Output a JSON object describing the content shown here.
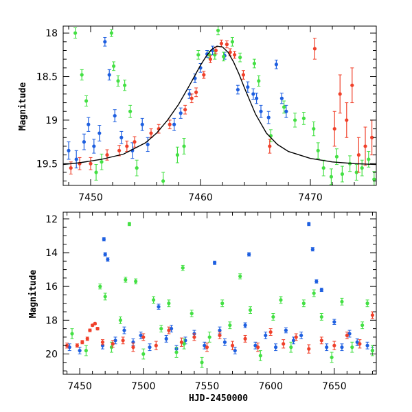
{
  "chart_data": [
    {
      "type": "scatter",
      "title": "",
      "xlabel": "",
      "ylabel": "Magnitude",
      "xlim": [
        7447.5,
        7476
      ],
      "ylim": [
        19.75,
        17.92
      ],
      "y_inverted": true,
      "grid": false,
      "x_ticks": [
        7450,
        7460,
        7470
      ],
      "y_ticks": [
        18,
        18.5,
        19,
        19.5
      ],
      "colors": {
        "blue": "#1e5fe0",
        "green": "#44e044",
        "red": "#f0402a",
        "model": "#000000"
      },
      "model_curve": {
        "style": "line",
        "x": [
          7447.5,
          7449,
          7451,
          7453,
          7455,
          7456,
          7457,
          7458,
          7459,
          7460,
          7460.5,
          7461,
          7461.5,
          7462,
          7462.5,
          7463,
          7463.5,
          7464,
          7465,
          7466,
          7467,
          7468,
          7470,
          7472,
          7474,
          7476
        ],
        "y": [
          19.51,
          19.49,
          19.45,
          19.39,
          19.26,
          19.15,
          19.0,
          18.82,
          18.6,
          18.37,
          18.27,
          18.19,
          18.15,
          18.16,
          18.22,
          18.33,
          18.47,
          18.63,
          18.93,
          19.15,
          19.28,
          19.36,
          19.44,
          19.48,
          19.5,
          19.51
        ]
      },
      "series": [
        {
          "color": "blue",
          "x": [
            7448.0,
            7448.7,
            7449.4,
            7449.8,
            7450.3,
            7450.8,
            7451.3,
            7451.7,
            7452.2,
            7452.8,
            7453.8,
            7454.7,
            7455.2,
            7457.6,
            7458.2,
            7459.0,
            7459.5,
            7460.0,
            7460.6,
            7461.1,
            7462.2,
            7463.4,
            7464.3,
            7464.8,
            7465.1,
            7465.5,
            7466.2,
            7466.9,
            7467.4,
            7467.8
          ],
          "y": [
            19.35,
            19.45,
            19.25,
            19.05,
            19.3,
            19.15,
            18.1,
            18.48,
            18.95,
            19.2,
            19.35,
            19.05,
            19.28,
            19.05,
            18.92,
            18.7,
            18.52,
            18.4,
            18.24,
            18.2,
            18.26,
            18.65,
            18.62,
            18.7,
            18.75,
            18.9,
            18.97,
            18.36,
            18.75,
            18.9
          ],
          "err": [
            0.1,
            0.1,
            0.09,
            0.08,
            0.08,
            0.09,
            0.05,
            0.06,
            0.07,
            0.07,
            0.09,
            0.07,
            0.08,
            0.07,
            0.06,
            0.05,
            0.05,
            0.05,
            0.04,
            0.05,
            0.04,
            0.05,
            0.06,
            0.06,
            0.06,
            0.07,
            0.07,
            0.05,
            0.06,
            0.07
          ]
        },
        {
          "color": "green",
          "x": [
            7448.6,
            7449.2,
            7449.6,
            7450.5,
            7451.0,
            7451.9,
            7452.1,
            7452.5,
            7453.1,
            7453.6,
            7454.2,
            7456.6,
            7457.9,
            7458.5,
            7459.8,
            7460.8,
            7461.3,
            7461.6,
            7462.1,
            7462.9,
            7463.6,
            7464.9,
            7465.3,
            7466.4,
            7467.6,
            7468.6,
            7469.4,
            7470.3,
            7470.7,
            7471.2,
            7471.9,
            7472.4,
            7472.9,
            7473.6,
            7474.2,
            7474.7,
            7475.3,
            7475.8
          ],
          "y": [
            18.0,
            18.48,
            18.78,
            19.6,
            19.48,
            18.0,
            18.38,
            18.55,
            18.6,
            18.9,
            19.55,
            19.7,
            19.4,
            19.3,
            18.25,
            18.25,
            18.25,
            17.97,
            18.27,
            18.1,
            18.28,
            18.35,
            18.55,
            19.18,
            18.85,
            19.0,
            18.98,
            19.1,
            19.35,
            19.55,
            19.65,
            19.42,
            19.62,
            19.5,
            19.6,
            19.55,
            19.45,
            19.68
          ],
          "err": [
            0.06,
            0.06,
            0.06,
            0.09,
            0.09,
            0.04,
            0.05,
            0.06,
            0.06,
            0.07,
            0.09,
            0.1,
            0.09,
            0.09,
            0.05,
            0.04,
            0.05,
            0.05,
            0.05,
            0.05,
            0.05,
            0.05,
            0.06,
            0.07,
            0.07,
            0.08,
            0.07,
            0.08,
            0.09,
            0.09,
            0.09,
            0.09,
            0.09,
            0.09,
            0.09,
            0.09,
            0.09,
            0.09
          ]
        },
        {
          "color": "red",
          "x": [
            7448.2,
            7449.0,
            7450.0,
            7451.5,
            7452.6,
            7453.3,
            7454.0,
            7455.5,
            7456.2,
            7457.2,
            7458.6,
            7459.2,
            7459.6,
            7460.3,
            7460.9,
            7461.4,
            7461.9,
            7462.4,
            7462.7,
            7463.1,
            7463.9,
            7466.3,
            7470.4,
            7472.2,
            7472.7,
            7473.3,
            7473.8,
            7474.4,
            7475.0,
            7475.6
          ],
          "y": [
            19.55,
            19.5,
            19.5,
            19.4,
            19.35,
            19.3,
            19.25,
            19.15,
            19.1,
            19.05,
            18.88,
            18.75,
            18.68,
            18.48,
            18.3,
            18.2,
            18.12,
            18.13,
            18.22,
            18.25,
            18.48,
            19.3,
            18.18,
            19.1,
            18.7,
            19.0,
            18.6,
            19.4,
            19.3,
            19.2
          ],
          "err": [
            0.07,
            0.07,
            0.07,
            0.06,
            0.06,
            0.06,
            0.06,
            0.05,
            0.05,
            0.05,
            0.05,
            0.05,
            0.05,
            0.04,
            0.04,
            0.04,
            0.04,
            0.04,
            0.04,
            0.04,
            0.05,
            0.08,
            0.12,
            0.2,
            0.22,
            0.2,
            0.2,
            0.2,
            0.22,
            0.2
          ]
        }
      ]
    },
    {
      "type": "scatter",
      "title": "",
      "xlabel": "HJD-2450000",
      "ylabel": "Magnitude",
      "xlim": [
        7437,
        7683
      ],
      "ylim": [
        21.2,
        11.6
      ],
      "y_inverted": true,
      "grid": false,
      "x_ticks": [
        7450,
        7500,
        7550,
        7600,
        7650
      ],
      "y_ticks": [
        12,
        14,
        16,
        18,
        20
      ],
      "colors": {
        "blue": "#1e5fe0",
        "green": "#44e044",
        "red": "#f0402a"
      },
      "series": [
        {
          "color": "blue",
          "x": [
            7442,
            7450,
            7468,
            7469,
            7470,
            7472,
            7478,
            7485,
            7492,
            7498,
            7505,
            7512,
            7518,
            7522,
            7526,
            7533,
            7540,
            7548,
            7556,
            7560,
            7564,
            7572,
            7580,
            7583,
            7588,
            7596,
            7604,
            7612,
            7618,
            7624,
            7630,
            7633,
            7636,
            7640,
            7644,
            7650,
            7656,
            7662,
            7668,
            7676,
            7680
          ],
          "y": [
            19.6,
            19.8,
            19.5,
            13.2,
            14.1,
            14.4,
            19.2,
            18.6,
            19.3,
            18.9,
            19.6,
            17.2,
            19.1,
            18.5,
            19.7,
            19.2,
            18.8,
            19.5,
            14.6,
            18.6,
            19.3,
            19.8,
            18.3,
            14.1,
            19.5,
            18.9,
            19.6,
            18.6,
            19.2,
            18.9,
            12.3,
            13.8,
            15.7,
            16.2,
            19.6,
            18.1,
            19.6,
            18.8,
            19.3,
            19.5,
            19.8
          ],
          "err": [
            0.2,
            0.2,
            0.2,
            0.1,
            0.1,
            0.1,
            0.2,
            0.2,
            0.2,
            0.2,
            0.2,
            0.15,
            0.2,
            0.2,
            0.2,
            0.2,
            0.2,
            0.2,
            0.1,
            0.2,
            0.2,
            0.2,
            0.15,
            0.1,
            0.2,
            0.2,
            0.2,
            0.15,
            0.2,
            0.2,
            0.1,
            0.1,
            0.1,
            0.1,
            0.2,
            0.15,
            0.2,
            0.2,
            0.2,
            0.2,
            0.2
          ]
        },
        {
          "color": "green",
          "x": [
            7444,
            7455,
            7466,
            7470,
            7475,
            7482,
            7486,
            7489,
            7494,
            7500,
            7508,
            7514,
            7520,
            7526,
            7531,
            7532,
            7538,
            7546,
            7552,
            7562,
            7568,
            7576,
            7584,
            7592,
            7602,
            7608,
            7616,
            7626,
            7634,
            7640,
            7648,
            7656,
            7664,
            7672,
            7676,
            7680
          ],
          "y": [
            18.8,
            19.8,
            16.0,
            16.6,
            19.6,
            18.0,
            15.6,
            12.3,
            15.7,
            20.0,
            16.8,
            18.5,
            17.0,
            19.9,
            14.9,
            19.4,
            17.6,
            20.5,
            19.0,
            17.0,
            18.3,
            15.4,
            17.4,
            20.1,
            17.8,
            16.8,
            19.6,
            17.0,
            16.4,
            17.8,
            20.2,
            16.9,
            19.6,
            18.3,
            17.0,
            19.8
          ],
          "err": [
            0.3,
            0.3,
            0.15,
            0.2,
            0.3,
            0.2,
            0.15,
            0.1,
            0.15,
            0.3,
            0.2,
            0.2,
            0.2,
            0.3,
            0.15,
            0.3,
            0.2,
            0.3,
            0.3,
            0.2,
            0.2,
            0.15,
            0.2,
            0.3,
            0.2,
            0.2,
            0.3,
            0.2,
            0.2,
            0.2,
            0.3,
            0.2,
            0.3,
            0.2,
            0.2,
            0.3
          ]
        },
        {
          "color": "red",
          "x": [
            7440,
            7448,
            7452,
            7456,
            7458,
            7460,
            7462,
            7464,
            7468,
            7476,
            7484,
            7492,
            7500,
            7510,
            7520,
            7530,
            7540,
            7550,
            7560,
            7570,
            7580,
            7590,
            7600,
            7610,
            7620,
            7630,
            7640,
            7650,
            7660,
            7670,
            7680
          ],
          "y": [
            19.5,
            19.5,
            19.3,
            19.1,
            18.6,
            18.3,
            18.2,
            18.5,
            19.3,
            19.4,
            19.2,
            19.6,
            19.0,
            19.5,
            18.6,
            19.3,
            19.0,
            19.6,
            18.9,
            19.5,
            19.1,
            19.6,
            18.7,
            19.4,
            19.0,
            19.7,
            19.2,
            19.5,
            18.9,
            19.4,
            17.7
          ],
          "err": [
            0.15,
            0.1,
            0.1,
            0.1,
            0.08,
            0.06,
            0.05,
            0.08,
            0.15,
            0.2,
            0.2,
            0.25,
            0.2,
            0.25,
            0.2,
            0.25,
            0.2,
            0.25,
            0.2,
            0.25,
            0.2,
            0.25,
            0.2,
            0.25,
            0.2,
            0.25,
            0.2,
            0.25,
            0.2,
            0.25,
            0.2
          ]
        }
      ]
    }
  ]
}
